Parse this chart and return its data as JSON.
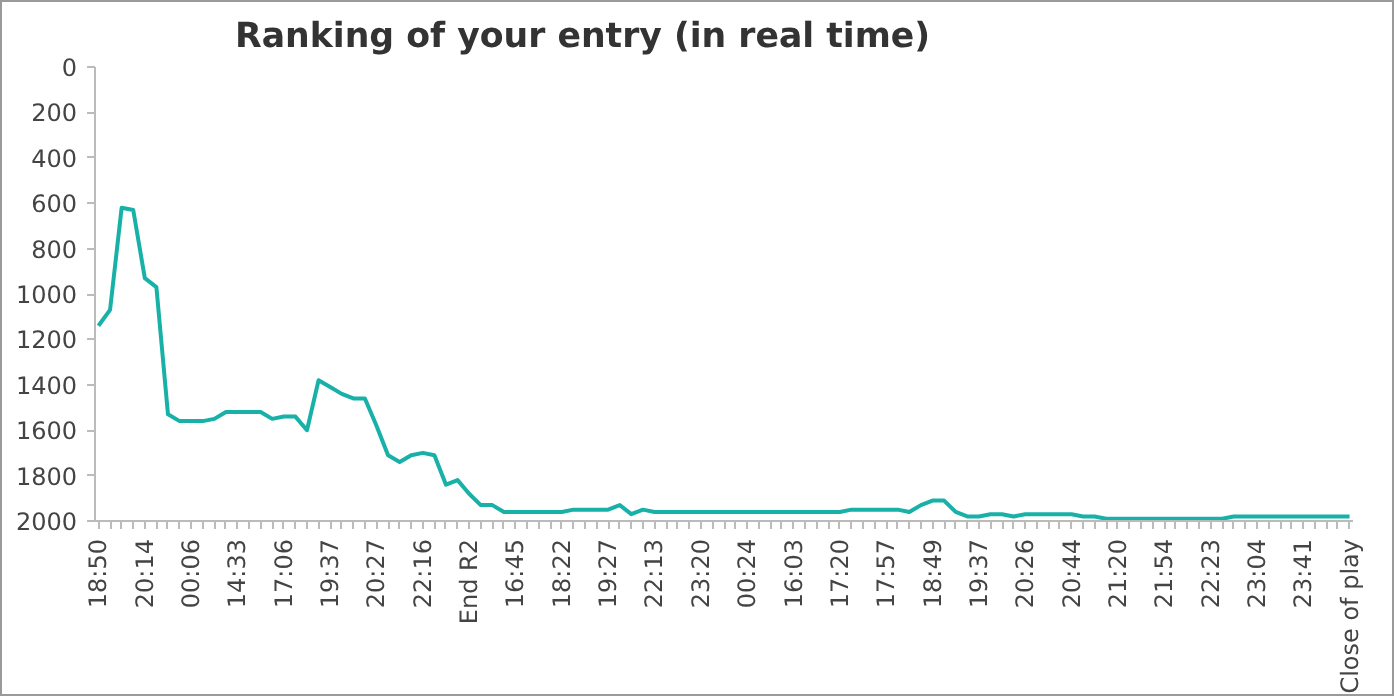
{
  "chart_data": {
    "type": "line",
    "title": "Ranking of your entry (in real time)",
    "categories": [
      "18:50",
      null,
      null,
      null,
      "20:14",
      null,
      null,
      null,
      "00:06",
      null,
      null,
      null,
      "14:33",
      null,
      null,
      null,
      "17:06",
      null,
      null,
      null,
      "19:37",
      null,
      null,
      null,
      "20:27",
      null,
      null,
      null,
      "22:16",
      null,
      null,
      null,
      "End R2",
      null,
      null,
      null,
      "16:45",
      null,
      null,
      null,
      "18:22",
      null,
      null,
      null,
      "19:27",
      null,
      null,
      null,
      "22:13",
      null,
      null,
      null,
      "23:20",
      null,
      null,
      null,
      "00:24",
      null,
      null,
      null,
      "16:03",
      null,
      null,
      null,
      "17:20",
      null,
      null,
      null,
      "17:57",
      null,
      null,
      null,
      "18:49",
      null,
      null,
      null,
      "19:37",
      null,
      null,
      null,
      "20:26",
      null,
      null,
      null,
      "20:44",
      null,
      null,
      null,
      "21:20",
      null,
      null,
      null,
      "21:54",
      null,
      null,
      null,
      "22:23",
      null,
      null,
      null,
      "23:04",
      null,
      null,
      null,
      "23:41",
      null,
      null,
      null,
      "Close of play"
    ],
    "series": [
      {
        "color": "#17b1a8",
        "values": [
          1140,
          1070,
          620,
          630,
          930,
          970,
          1530,
          1560,
          1560,
          1560,
          1550,
          1520,
          1520,
          1520,
          1520,
          1550,
          1540,
          1540,
          1600,
          1380,
          1410,
          1440,
          1460,
          1460,
          1580,
          1710,
          1740,
          1710,
          1700,
          1710,
          1840,
          1820,
          1880,
          1930,
          1930,
          1960,
          1960,
          1960,
          1960,
          1960,
          1960,
          1950,
          1950,
          1950,
          1950,
          1930,
          1970,
          1950,
          1960,
          1960,
          1960,
          1960,
          1960,
          1960,
          1960,
          1960,
          1960,
          1960,
          1960,
          1960,
          1960,
          1960,
          1960,
          1960,
          1960,
          1950,
          1950,
          1950,
          1950,
          1950,
          1960,
          1930,
          1910,
          1910,
          1960,
          1980,
          1980,
          1970,
          1970,
          1980,
          1970,
          1970,
          1970,
          1970,
          1970,
          1980,
          1980,
          1990,
          1990,
          1990,
          1990,
          1990,
          1990,
          1990,
          1990,
          1990,
          1990,
          1990,
          1980,
          1980,
          1980,
          1980,
          1980,
          1980,
          1980,
          1980,
          1980,
          1980,
          1980
        ]
      }
    ],
    "ylim": [
      2000,
      0
    ],
    "yticks": [
      0,
      200,
      400,
      600,
      800,
      1000,
      1200,
      1400,
      1600,
      1800,
      2000
    ],
    "grid": false,
    "marker": "none",
    "line_style": "solid"
  }
}
